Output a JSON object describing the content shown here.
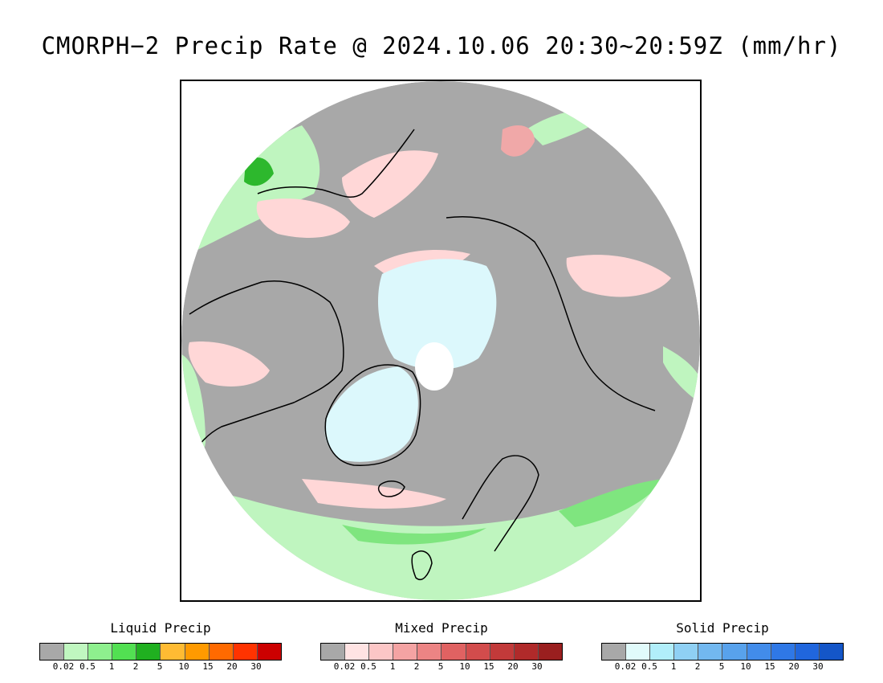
{
  "title": "CMORPH−2 Precip Rate @ 2024.10.06 20:30~20:59Z (mm/hr)",
  "map": {
    "projection": "polar-stereographic-north",
    "colors": {
      "no_precip": "#a8a8a8",
      "liquid_light": "#bff5bf",
      "liquid_mid": "#7fe57f",
      "liquid_strong": "#2db82d",
      "mixed_light": "#ffd7d7",
      "mixed_mid": "#f0a8a8",
      "solid_light": "#dcf8fc",
      "polar_gap": "#ffffff",
      "coastline": "#000000"
    }
  },
  "legends": [
    {
      "title": "Liquid Precip",
      "ticks": [
        "0.02",
        "0.5",
        "1",
        "2",
        "5",
        "10",
        "15",
        "20",
        "30"
      ],
      "colors": [
        "#a8a8a8",
        "#c0f7c0",
        "#8ef08e",
        "#52e052",
        "#20b020",
        "#ffbb33",
        "#ff9a00",
        "#ff6a00",
        "#ff3300",
        "#cc0000"
      ]
    },
    {
      "title": "Mixed Precip",
      "ticks": [
        "0.02",
        "0.5",
        "1",
        "2",
        "5",
        "10",
        "15",
        "20",
        "30"
      ],
      "colors": [
        "#a8a8a8",
        "#ffe3e3",
        "#fcc6c6",
        "#f4a3a3",
        "#ec8484",
        "#e06262",
        "#d24c4c",
        "#c23a3a",
        "#b02a2a",
        "#9a1f1f"
      ]
    },
    {
      "title": "Solid Precip",
      "ticks": [
        "0.02",
        "0.5",
        "1",
        "2",
        "5",
        "10",
        "15",
        "20",
        "30"
      ],
      "colors": [
        "#a8a8a8",
        "#e1fbfb",
        "#b1eefa",
        "#8fd0f4",
        "#72b8f0",
        "#58a2ec",
        "#428cea",
        "#2f78e6",
        "#2066dd",
        "#1456c8"
      ]
    }
  ]
}
